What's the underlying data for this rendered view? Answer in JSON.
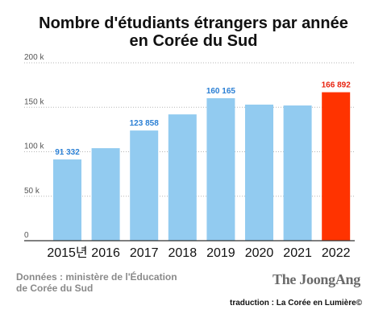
{
  "header": {
    "title_line1": "Nombre d'étudiants étrangers par année",
    "title_line2": "en Corée du Sud"
  },
  "footer": {
    "source_line1": "Données : ministère de l'Éducation",
    "source_line2": "de Corée du Sud",
    "brand": "The JoongAng",
    "credit": "traduction : La Corée en Lumière©"
  },
  "chart_data": {
    "type": "bar",
    "title": "Nombre d'étudiants étrangers par année en Corée du Sud",
    "xlabel": "",
    "ylabel": "",
    "categories": [
      "2015년",
      "2016",
      "2017",
      "2018",
      "2019",
      "2020",
      "2021",
      "2022"
    ],
    "values": [
      91332,
      104000,
      123858,
      142000,
      160165,
      153000,
      152000,
      166892
    ],
    "data_labels": [
      "91 332",
      "",
      "123 858",
      "",
      "160 165",
      "",
      "",
      "166 892"
    ],
    "ylim": [
      0,
      200000
    ],
    "yticks": [
      0,
      50000,
      100000,
      150000,
      200000
    ],
    "ytick_labels": [
      "0",
      "50 k",
      "100 k",
      "150 k",
      "200 k"
    ],
    "grid": true,
    "colors": {
      "bar": "#92cbf0",
      "highlight_bar": "#ff3300",
      "label": "#2a7fd4",
      "highlight_label": "#e8230f",
      "grid": "#b5b5b5"
    },
    "highlight_index": 7
  }
}
